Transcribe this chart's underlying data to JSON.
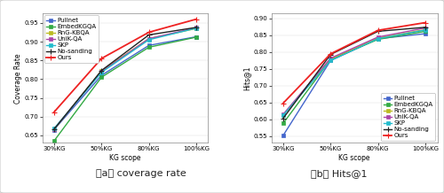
{
  "x_labels": [
    "30%KG",
    "50%KG",
    "80%KG",
    "100%KG"
  ],
  "x_values": [
    0,
    1,
    2,
    3
  ],
  "xlabel": "KG scope",
  "coverage": {
    "ylabel": "Coverage Rate",
    "ylim": [
      0.63,
      0.975
    ],
    "yticks": [
      0.65,
      0.7,
      0.75,
      0.8,
      0.85,
      0.9,
      0.95
    ],
    "series": {
      "Pullnet": {
        "values": [
          0.665,
          0.81,
          0.89,
          0.913
        ],
        "color": "#4466cc",
        "marker": "s",
        "lw": 1.0
      },
      "EmbedKGQA": {
        "values": [
          0.635,
          0.805,
          0.885,
          0.912
        ],
        "color": "#33aa44",
        "marker": "s",
        "lw": 1.0
      },
      "RnG-KBQA": {
        "values": [
          0.666,
          0.822,
          0.908,
          0.935
        ],
        "color": "#bbbb22",
        "marker": "s",
        "lw": 1.0
      },
      "UniK-QA": {
        "values": [
          0.667,
          0.82,
          0.908,
          0.937
        ],
        "color": "#aa44aa",
        "marker": "s",
        "lw": 1.0
      },
      "SKP": {
        "values": [
          0.668,
          0.818,
          0.905,
          0.936
        ],
        "color": "#22bbcc",
        "marker": "s",
        "lw": 1.0
      },
      "No-sanding": {
        "values": [
          0.666,
          0.823,
          0.918,
          0.938
        ],
        "color": "#222222",
        "marker": "+",
        "lw": 1.0
      },
      "Ours": {
        "values": [
          0.712,
          0.855,
          0.925,
          0.96
        ],
        "color": "#ee2222",
        "marker": "+",
        "lw": 1.3
      }
    }
  },
  "hits": {
    "ylabel": "Hits@1",
    "ylim": [
      0.53,
      0.915
    ],
    "yticks": [
      0.55,
      0.6,
      0.65,
      0.7,
      0.75,
      0.8,
      0.85,
      0.9
    ],
    "series": {
      "Pullnet": {
        "values": [
          0.552,
          0.775,
          0.84,
          0.855
        ],
        "color": "#4466cc",
        "marker": "s",
        "lw": 1.0
      },
      "EmbedKGQA": {
        "values": [
          0.588,
          0.778,
          0.838,
          0.862
        ],
        "color": "#33aa44",
        "marker": "s",
        "lw": 1.0
      },
      "RnG-KBQA": {
        "values": [
          0.613,
          0.78,
          0.842,
          0.867
        ],
        "color": "#bbbb22",
        "marker": "s",
        "lw": 1.0
      },
      "UniK-QA": {
        "values": [
          0.615,
          0.782,
          0.845,
          0.872
        ],
        "color": "#aa44aa",
        "marker": "s",
        "lw": 1.0
      },
      "SKP": {
        "values": [
          0.612,
          0.775,
          0.84,
          0.866
        ],
        "color": "#22bbcc",
        "marker": "s",
        "lw": 1.0
      },
      "No-sanding": {
        "values": [
          0.603,
          0.793,
          0.862,
          0.874
        ],
        "color": "#222222",
        "marker": "+",
        "lw": 1.0
      },
      "Ours": {
        "values": [
          0.648,
          0.795,
          0.865,
          0.888
        ],
        "color": "#ee2222",
        "marker": "+",
        "lw": 1.3
      }
    }
  },
  "caption_a": "（a） coverage rate",
  "caption_b": "（b） Hits@1",
  "caption_fontsize": 8,
  "legend_fontsize": 5.0,
  "tick_fontsize": 5.0,
  "label_fontsize": 5.5,
  "bg_color": "#f0eeea"
}
